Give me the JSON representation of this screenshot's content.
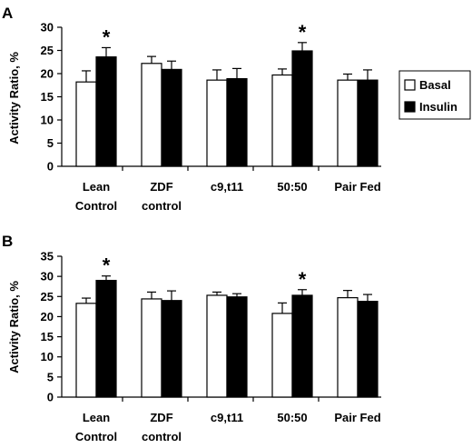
{
  "colors": {
    "basal": "#ffffff",
    "insulin": "#000000",
    "axis": "#000000"
  },
  "legend": {
    "basal": "Basal",
    "insulin": "Insulin"
  },
  "chart_data": [
    {
      "panel": "A",
      "type": "bar",
      "ylabel": "Activity Ratio, %",
      "ylim": [
        0,
        30
      ],
      "yticks": [
        "0",
        "5",
        "10",
        "15",
        "20",
        "25",
        "30"
      ],
      "categories": [
        [
          "Lean",
          "Control"
        ],
        [
          "ZDF",
          "control"
        ],
        [
          "c9,t11"
        ],
        [
          "50:50"
        ],
        [
          "Pair Fed"
        ]
      ],
      "series": [
        {
          "name": "Basal",
          "values": [
            18.2,
            22.2,
            18.6,
            19.7,
            18.6
          ],
          "errors": [
            2.4,
            1.5,
            2.2,
            1.3,
            1.3
          ]
        },
        {
          "name": "Insulin",
          "values": [
            23.6,
            20.9,
            18.9,
            24.9,
            18.6
          ],
          "errors": [
            2.0,
            1.8,
            2.2,
            1.8,
            2.2
          ]
        }
      ],
      "significance": [
        {
          "category": 0,
          "label": "*"
        },
        {
          "category": 3,
          "label": "*"
        }
      ],
      "legend_position": "right"
    },
    {
      "panel": "B",
      "type": "bar",
      "ylabel": "Activity Ratio, %",
      "ylim": [
        0,
        35
      ],
      "yticks": [
        "0",
        "5",
        "10",
        "15",
        "20",
        "25",
        "30",
        "35"
      ],
      "categories": [
        [
          "Lean",
          "Control"
        ],
        [
          "ZDF",
          "control"
        ],
        [
          "c9,t11"
        ],
        [
          "50:50"
        ],
        [
          "Pair Fed"
        ]
      ],
      "series": [
        {
          "name": "Basal",
          "values": [
            23.3,
            24.4,
            25.3,
            20.8,
            24.7
          ],
          "errors": [
            1.3,
            1.7,
            0.8,
            2.6,
            1.8
          ]
        },
        {
          "name": "Insulin",
          "values": [
            29.0,
            24.0,
            24.9,
            25.3,
            23.8
          ],
          "errors": [
            1.1,
            2.4,
            0.8,
            1.4,
            1.7
          ]
        }
      ],
      "significance": [
        {
          "category": 0,
          "label": "*"
        },
        {
          "category": 3,
          "label": "*"
        }
      ],
      "legend_position": "none"
    }
  ]
}
